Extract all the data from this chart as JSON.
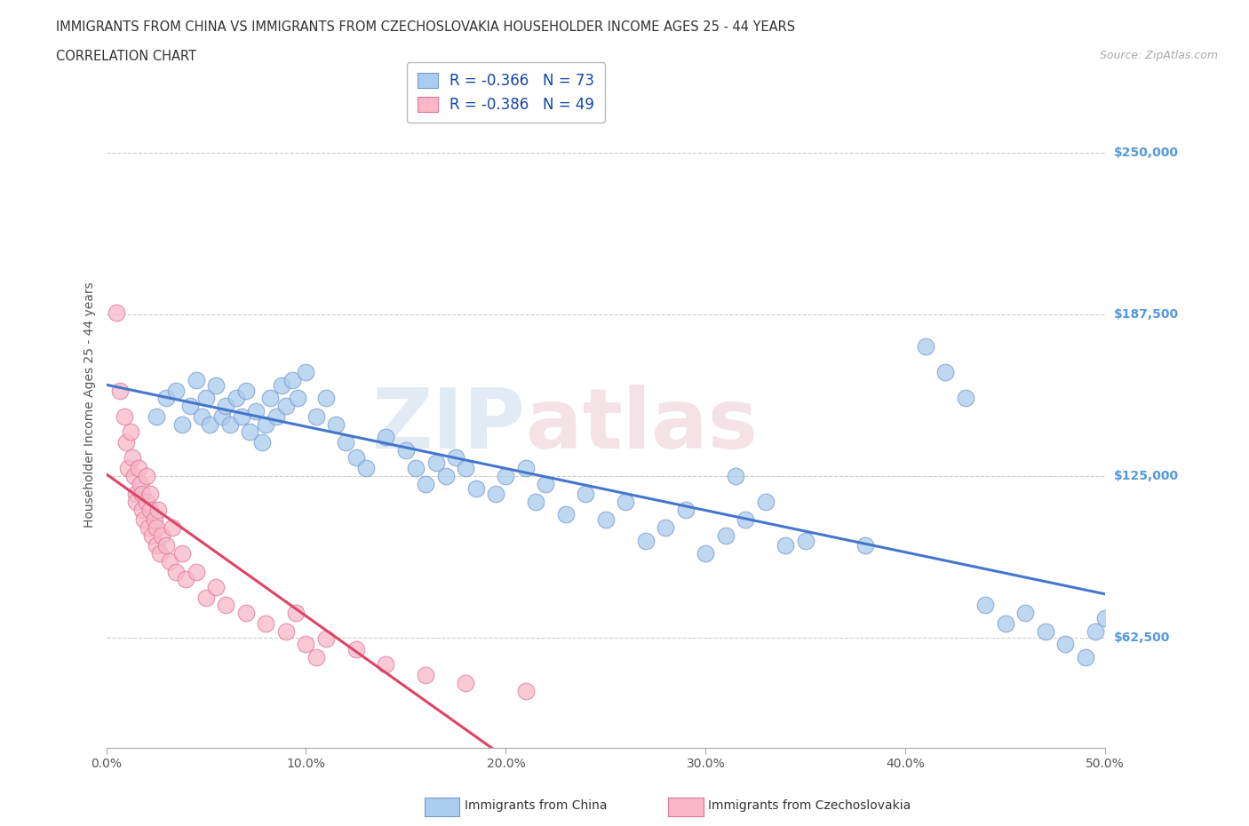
{
  "title_line1": "IMMIGRANTS FROM CHINA VS IMMIGRANTS FROM CZECHOSLOVAKIA HOUSEHOLDER INCOME AGES 25 - 44 YEARS",
  "title_line2": "CORRELATION CHART",
  "source_text": "Source: ZipAtlas.com",
  "ylabel": "Householder Income Ages 25 - 44 years",
  "xlim": [
    0.0,
    0.5
  ],
  "ylim": [
    20000,
    285000
  ],
  "xtick_labels": [
    "0.0%",
    "10.0%",
    "20.0%",
    "30.0%",
    "40.0%",
    "50.0%"
  ],
  "xtick_vals": [
    0.0,
    0.1,
    0.2,
    0.3,
    0.4,
    0.5
  ],
  "ytick_labels": [
    "$62,500",
    "$125,000",
    "$187,500",
    "$250,000"
  ],
  "ytick_vals": [
    62500,
    125000,
    187500,
    250000
  ],
  "grid_color": "#cccccc",
  "background_color": "#ffffff",
  "china_color": "#aaccee",
  "china_edge_color": "#7799cc",
  "czech_color": "#f8b8c8",
  "czech_edge_color": "#dd7799",
  "china_line_color": "#4477cc",
  "czech_line_color": "#dd4466",
  "china_r": -0.366,
  "china_n": 73,
  "czech_r": -0.386,
  "czech_n": 49,
  "legend_label_china": "Immigrants from China",
  "legend_label_czech": "Immigrants from Czechoslovakia",
  "china_x": [
    0.025,
    0.03,
    0.035,
    0.038,
    0.042,
    0.045,
    0.048,
    0.05,
    0.052,
    0.055,
    0.058,
    0.06,
    0.062,
    0.065,
    0.068,
    0.07,
    0.072,
    0.075,
    0.078,
    0.08,
    0.082,
    0.085,
    0.088,
    0.09,
    0.093,
    0.096,
    0.1,
    0.105,
    0.11,
    0.115,
    0.12,
    0.125,
    0.13,
    0.14,
    0.15,
    0.155,
    0.16,
    0.165,
    0.17,
    0.175,
    0.18,
    0.185,
    0.195,
    0.2,
    0.21,
    0.215,
    0.22,
    0.23,
    0.24,
    0.25,
    0.26,
    0.27,
    0.28,
    0.29,
    0.3,
    0.31,
    0.315,
    0.32,
    0.33,
    0.34,
    0.35,
    0.38,
    0.41,
    0.42,
    0.43,
    0.44,
    0.45,
    0.46,
    0.47,
    0.48,
    0.49,
    0.495,
    0.5
  ],
  "china_y": [
    148000,
    155000,
    158000,
    145000,
    152000,
    162000,
    148000,
    155000,
    145000,
    160000,
    148000,
    152000,
    145000,
    155000,
    148000,
    158000,
    142000,
    150000,
    138000,
    145000,
    155000,
    148000,
    160000,
    152000,
    162000,
    155000,
    165000,
    148000,
    155000,
    145000,
    138000,
    132000,
    128000,
    140000,
    135000,
    128000,
    122000,
    130000,
    125000,
    132000,
    128000,
    120000,
    118000,
    125000,
    128000,
    115000,
    122000,
    110000,
    118000,
    108000,
    115000,
    100000,
    105000,
    112000,
    95000,
    102000,
    125000,
    108000,
    115000,
    98000,
    100000,
    98000,
    175000,
    165000,
    155000,
    75000,
    68000,
    72000,
    65000,
    60000,
    55000,
    65000,
    70000
  ],
  "czech_x": [
    0.005,
    0.007,
    0.009,
    0.01,
    0.011,
    0.012,
    0.013,
    0.014,
    0.015,
    0.015,
    0.016,
    0.017,
    0.018,
    0.018,
    0.019,
    0.02,
    0.02,
    0.021,
    0.022,
    0.022,
    0.023,
    0.024,
    0.025,
    0.025,
    0.026,
    0.027,
    0.028,
    0.03,
    0.032,
    0.033,
    0.035,
    0.038,
    0.04,
    0.045,
    0.05,
    0.055,
    0.06,
    0.07,
    0.08,
    0.09,
    0.095,
    0.1,
    0.105,
    0.11,
    0.125,
    0.14,
    0.16,
    0.18,
    0.21
  ],
  "czech_y": [
    188000,
    158000,
    148000,
    138000,
    128000,
    142000,
    132000,
    125000,
    118000,
    115000,
    128000,
    122000,
    112000,
    118000,
    108000,
    115000,
    125000,
    105000,
    112000,
    118000,
    102000,
    108000,
    98000,
    105000,
    112000,
    95000,
    102000,
    98000,
    92000,
    105000,
    88000,
    95000,
    85000,
    88000,
    78000,
    82000,
    75000,
    72000,
    68000,
    65000,
    72000,
    60000,
    55000,
    62000,
    58000,
    52000,
    48000,
    45000,
    42000
  ]
}
